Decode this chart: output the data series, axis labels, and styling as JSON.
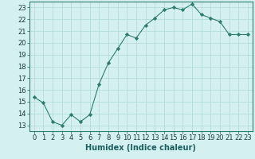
{
  "x": [
    0,
    1,
    2,
    3,
    4,
    5,
    6,
    7,
    8,
    9,
    10,
    11,
    12,
    13,
    14,
    15,
    16,
    17,
    18,
    19,
    20,
    21,
    22,
    23
  ],
  "y": [
    15.4,
    14.9,
    13.3,
    13.0,
    13.9,
    13.3,
    13.9,
    16.5,
    18.3,
    19.5,
    20.7,
    20.4,
    21.5,
    22.1,
    22.8,
    23.0,
    22.8,
    23.3,
    22.4,
    22.1,
    21.8,
    20.7,
    20.7,
    20.7
  ],
  "line_color": "#2d7d6f",
  "marker": "D",
  "marker_size": 2.2,
  "bg_color": "#d4f0f0",
  "grid_color": "#b0d8d8",
  "xlabel": "Humidex (Indice chaleur)",
  "xlim": [
    -0.5,
    23.5
  ],
  "ylim": [
    12.5,
    23.5
  ],
  "yticks": [
    13,
    14,
    15,
    16,
    17,
    18,
    19,
    20,
    21,
    22,
    23
  ],
  "xticks": [
    0,
    1,
    2,
    3,
    4,
    5,
    6,
    7,
    8,
    9,
    10,
    11,
    12,
    13,
    14,
    15,
    16,
    17,
    18,
    19,
    20,
    21,
    22,
    23
  ],
  "tick_fontsize": 6.0,
  "xlabel_fontsize": 7.0
}
